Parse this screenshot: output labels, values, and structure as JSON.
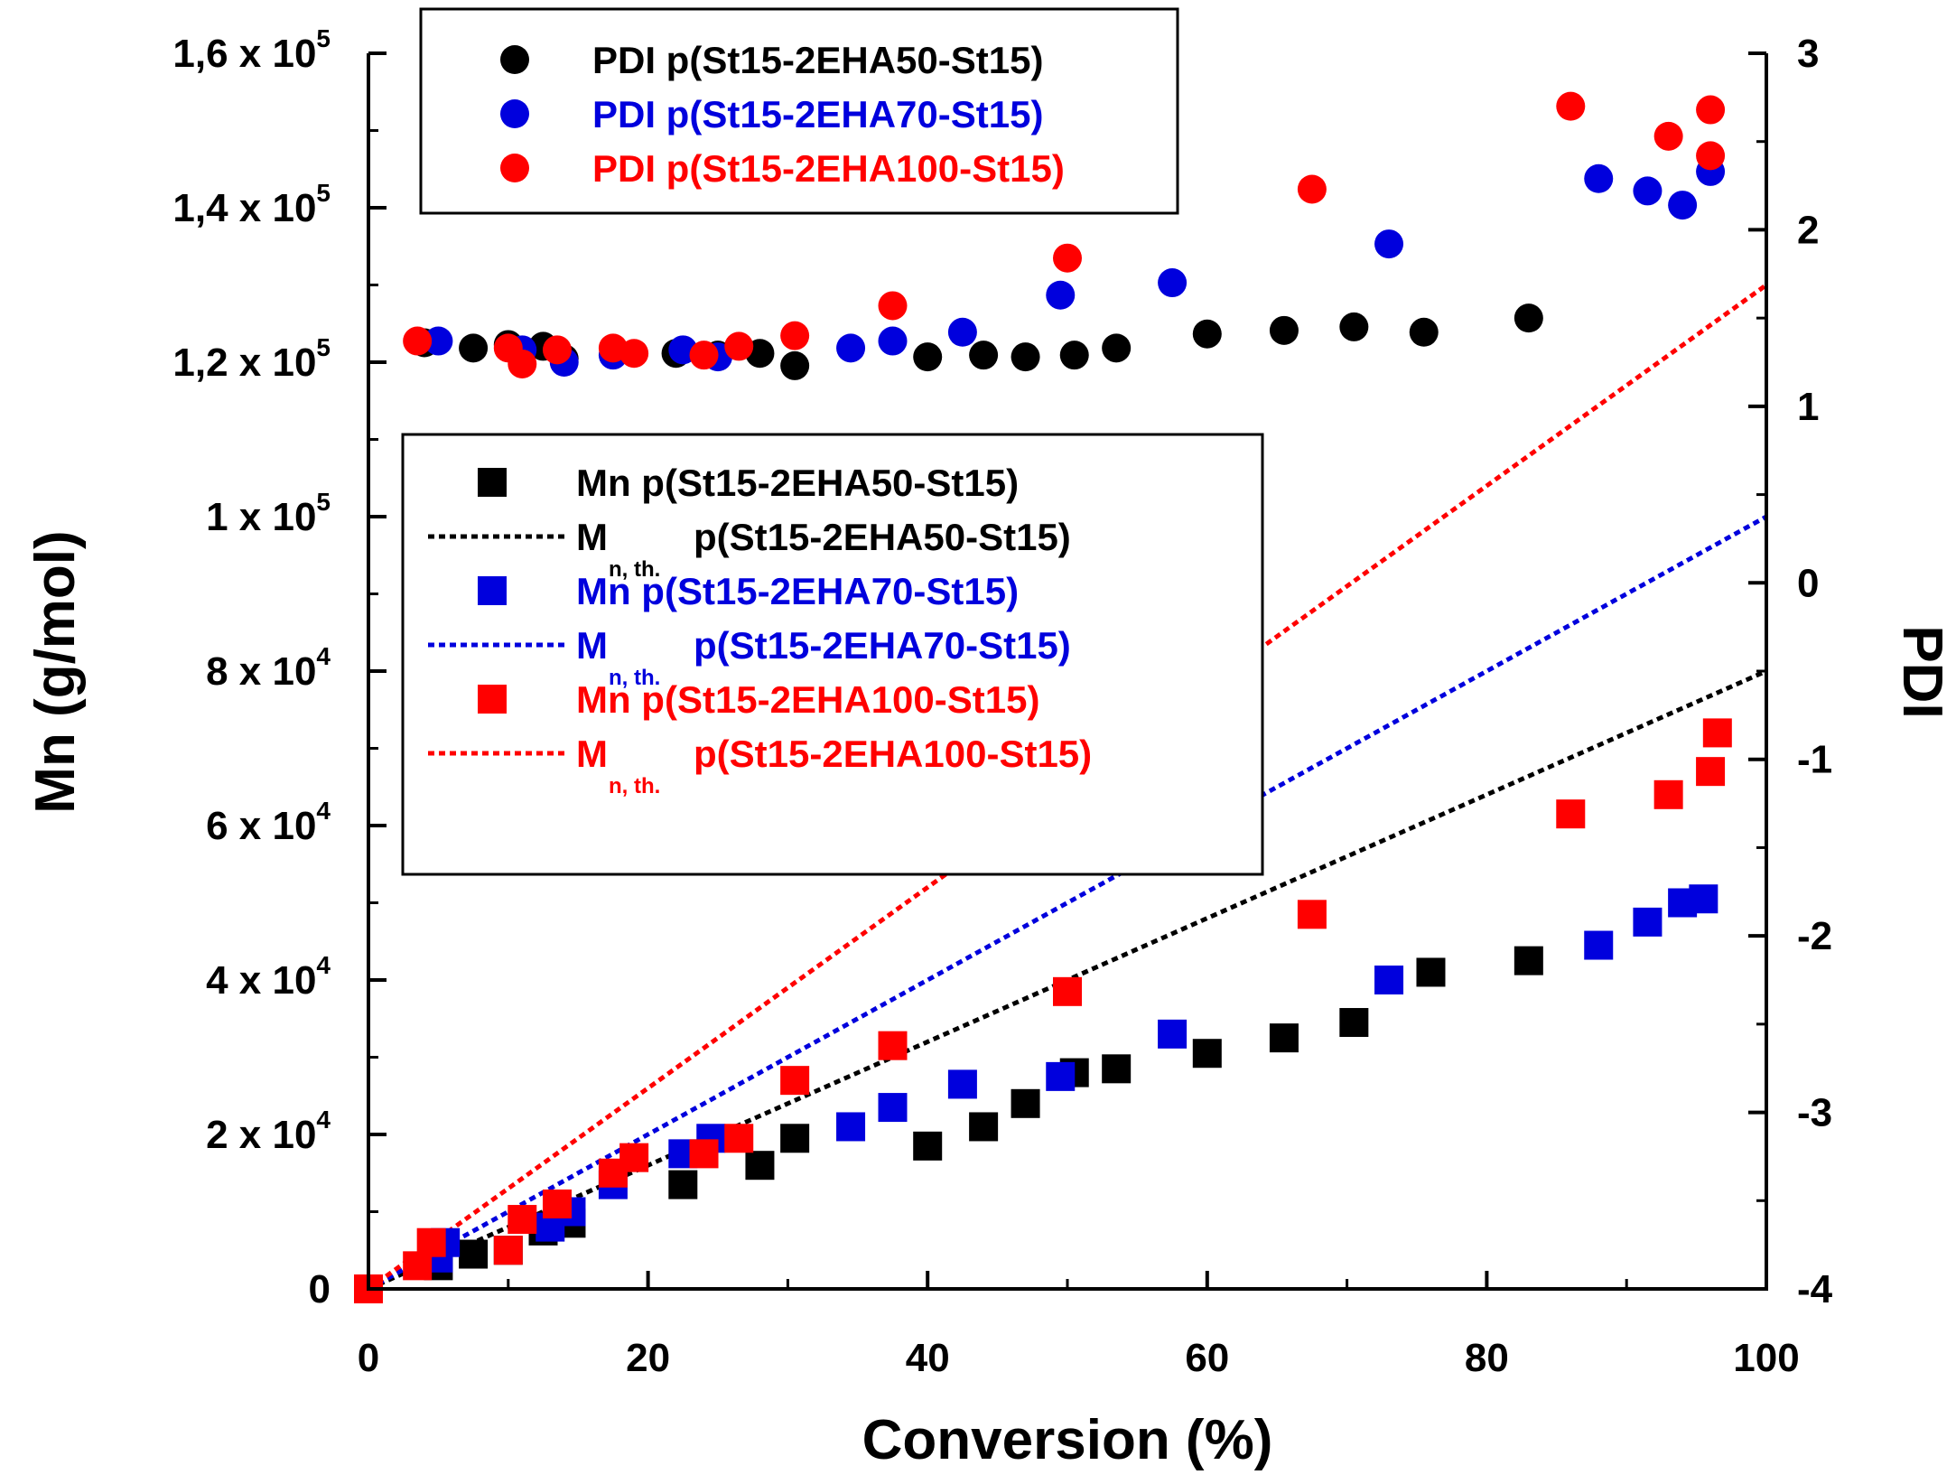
{
  "chart_data": {
    "type": "scatter",
    "title": "",
    "xlabel": "Conversion (%)",
    "ylabel": "Mn (g/mol)",
    "y2label": "PDI",
    "xlim": [
      0,
      100
    ],
    "ylim": [
      0,
      160000
    ],
    "y2lim": [
      -4,
      3
    ],
    "x_ticks": [
      "0",
      "20",
      "40",
      "60",
      "80",
      "100"
    ],
    "y_ticks": [
      {
        "mant": "0",
        "exp": ""
      },
      {
        "mant": "2 x 10",
        "exp": "4"
      },
      {
        "mant": "4 x 10",
        "exp": "4"
      },
      {
        "mant": "6 x 10",
        "exp": "4"
      },
      {
        "mant": "8 x 10",
        "exp": "4"
      },
      {
        "mant": "1 x 10",
        "exp": "5"
      },
      {
        "mant": "1,2 x 10",
        "exp": "5"
      },
      {
        "mant": "1,4 x 10",
        "exp": "5"
      },
      {
        "mant": "1,6 x 10",
        "exp": "5"
      }
    ],
    "y2_ticks": [
      "-4",
      "-3",
      "-2",
      "-1",
      "0",
      "1",
      "2",
      "3"
    ],
    "legend_pdi": [
      {
        "label": "PDI p(St15-2EHA50-St15)",
        "color": "#000000"
      },
      {
        "label": "PDI p(St15-2EHA70-St15)",
        "color": "#0000dd"
      },
      {
        "label": "PDI p(St15-2EHA100-St15)",
        "color": "#ff0000"
      }
    ],
    "legend_mn": [
      {
        "kind": "square",
        "main": "Mn  p(St15-2EHA50-St15)",
        "color": "#000000"
      },
      {
        "kind": "line",
        "main": "M",
        "sub": "n, th.",
        "rest": "p(St15-2EHA50-St15)",
        "color": "#000000"
      },
      {
        "kind": "square",
        "main": "Mn p(St15-2EHA70-St15)",
        "color": "#0000dd"
      },
      {
        "kind": "line",
        "main": "M",
        "sub": "n, th.",
        "rest": "p(St15-2EHA70-St15)",
        "color": "#0000dd"
      },
      {
        "kind": "square",
        "main": "Mn p(St15-2EHA100-St15)",
        "color": "#ff0000"
      },
      {
        "kind": "line",
        "main": "M",
        "sub": "n, th.",
        "rest": "p(St15-2EHA100-St15)",
        "color": "#ff0000"
      }
    ],
    "series_pdi": [
      {
        "name": "PDI p(St15-2EHA50-St15)",
        "color": "#000000",
        "points": [
          [
            4,
            1.36
          ],
          [
            7.5,
            1.33
          ],
          [
            10,
            1.35
          ],
          [
            12.5,
            1.34
          ],
          [
            14,
            1.27
          ],
          [
            22,
            1.3
          ],
          [
            25,
            1.29
          ],
          [
            28,
            1.3
          ],
          [
            30.5,
            1.23
          ],
          [
            40,
            1.28
          ],
          [
            44,
            1.29
          ],
          [
            47,
            1.28
          ],
          [
            50.5,
            1.29
          ],
          [
            53.5,
            1.33
          ],
          [
            60,
            1.41
          ],
          [
            65.5,
            1.43
          ],
          [
            70.5,
            1.45
          ],
          [
            75.5,
            1.42
          ],
          [
            83,
            1.5
          ]
        ]
      },
      {
        "name": "PDI p(St15-2EHA70-St15)",
        "color": "#0000dd",
        "points": [
          [
            5,
            1.37
          ],
          [
            11,
            1.32
          ],
          [
            14,
            1.25
          ],
          [
            17.5,
            1.29
          ],
          [
            22.5,
            1.32
          ],
          [
            25,
            1.28
          ],
          [
            34.5,
            1.33
          ],
          [
            37.5,
            1.37
          ],
          [
            42.5,
            1.42
          ],
          [
            49.5,
            1.63
          ],
          [
            57.5,
            1.7
          ],
          [
            73,
            1.92
          ],
          [
            88,
            2.29
          ],
          [
            91.5,
            2.22
          ],
          [
            94,
            2.14
          ],
          [
            96,
            2.33
          ]
        ]
      },
      {
        "name": "PDI p(St15-2EHA100-St15)",
        "color": "#ff0000",
        "points": [
          [
            3.5,
            1.37
          ],
          [
            10,
            1.33
          ],
          [
            11,
            1.24
          ],
          [
            13.5,
            1.32
          ],
          [
            17.5,
            1.33
          ],
          [
            19,
            1.3
          ],
          [
            24,
            1.29
          ],
          [
            26.5,
            1.34
          ],
          [
            30.5,
            1.4
          ],
          [
            37.5,
            1.57
          ],
          [
            50,
            1.84
          ],
          [
            67.5,
            2.23
          ],
          [
            86,
            2.7
          ],
          [
            93,
            2.53
          ],
          [
            96,
            2.68
          ],
          [
            96,
            2.42
          ]
        ]
      }
    ],
    "series_mn": [
      {
        "name": "Mn p(St15-2EHA50-St15)",
        "color": "#000000",
        "points": [
          [
            0,
            0
          ],
          [
            5,
            3000
          ],
          [
            7.5,
            4500
          ],
          [
            10,
            5000
          ],
          [
            12.5,
            7500
          ],
          [
            14.5,
            8500
          ],
          [
            22.5,
            13500
          ],
          [
            28,
            16000
          ],
          [
            30.5,
            19500
          ],
          [
            40,
            18500
          ],
          [
            44,
            21000
          ],
          [
            47,
            24000
          ],
          [
            50.5,
            28000
          ],
          [
            53.5,
            28500
          ],
          [
            60,
            30500
          ],
          [
            65.5,
            32500
          ],
          [
            70.5,
            34500
          ],
          [
            76,
            41000
          ],
          [
            83,
            42500
          ]
        ]
      },
      {
        "name": "Mn p(St15-2EHA70-St15)",
        "color": "#0000dd",
        "points": [
          [
            0,
            0
          ],
          [
            5,
            4000
          ],
          [
            5.5,
            6000
          ],
          [
            13,
            8000
          ],
          [
            14.5,
            10000
          ],
          [
            17.5,
            13500
          ],
          [
            22.5,
            17500
          ],
          [
            24.5,
            19500
          ],
          [
            34.5,
            21000
          ],
          [
            37.5,
            23500
          ],
          [
            42.5,
            26500
          ],
          [
            49.5,
            27500
          ],
          [
            57.5,
            33000
          ],
          [
            73,
            40000
          ],
          [
            88,
            44500
          ],
          [
            91.5,
            47500
          ],
          [
            94,
            50000
          ],
          [
            95.5,
            50500
          ]
        ]
      },
      {
        "name": "Mn p(St15-2EHA100-St15)",
        "color": "#ff0000",
        "points": [
          [
            0,
            0
          ],
          [
            3.5,
            3000
          ],
          [
            4.5,
            6000
          ],
          [
            10,
            5000
          ],
          [
            11,
            9000
          ],
          [
            13.5,
            11000
          ],
          [
            17.5,
            15000
          ],
          [
            19,
            17000
          ],
          [
            24,
            17500
          ],
          [
            26.5,
            19500
          ],
          [
            30.5,
            27000
          ],
          [
            37.5,
            31500
          ],
          [
            50,
            38500
          ],
          [
            67.5,
            48500
          ],
          [
            86,
            61500
          ],
          [
            93,
            64000
          ],
          [
            96,
            67000
          ],
          [
            96.5,
            72000
          ]
        ]
      }
    ],
    "series_theory": [
      {
        "name": "Mn,th. p(St15-2EHA50-St15)",
        "color": "#000000",
        "points": [
          [
            0,
            0
          ],
          [
            100,
            80000
          ]
        ]
      },
      {
        "name": "Mn,th. p(St15-2EHA70-St15)",
        "color": "#0000dd",
        "points": [
          [
            0,
            0
          ],
          [
            100,
            100000
          ]
        ]
      },
      {
        "name": "Mn,th. p(St15-2EHA100-St15)",
        "color": "#ff0000",
        "points": [
          [
            0,
            0
          ],
          [
            100,
            130000
          ]
        ]
      }
    ]
  }
}
